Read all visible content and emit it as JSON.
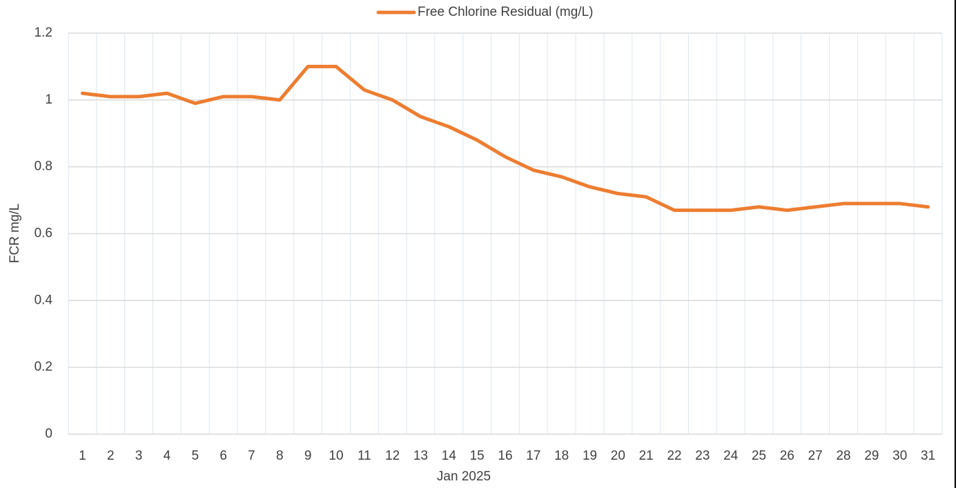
{
  "chart_data": {
    "type": "line",
    "x_label": "Jan 2025",
    "y_label": "FCR mg/L",
    "categories": [
      "1",
      "2",
      "3",
      "4",
      "5",
      "6",
      "7",
      "8",
      "9",
      "10",
      "11",
      "12",
      "13",
      "14",
      "15",
      "16",
      "17",
      "18",
      "19",
      "20",
      "21",
      "22",
      "23",
      "24",
      "25",
      "26",
      "27",
      "28",
      "29",
      "30",
      "31"
    ],
    "series": [
      {
        "name": "Free Chlorine Residual (mg/L)",
        "color": "#ed7d31",
        "values": [
          1.02,
          1.01,
          1.01,
          1.02,
          0.99,
          1.01,
          1.01,
          1.0,
          1.1,
          1.1,
          1.03,
          1.0,
          0.95,
          0.92,
          0.88,
          0.83,
          0.79,
          0.77,
          0.74,
          0.72,
          0.71,
          0.67,
          0.67,
          0.67,
          0.68,
          0.67,
          0.68,
          0.69,
          0.69,
          0.69,
          0.68
        ]
      }
    ],
    "ylim": [
      0,
      1.2
    ],
    "yticks": [
      0,
      0.2,
      0.4,
      0.6,
      0.8,
      1,
      1.2
    ],
    "grid": true,
    "legend": "top"
  }
}
